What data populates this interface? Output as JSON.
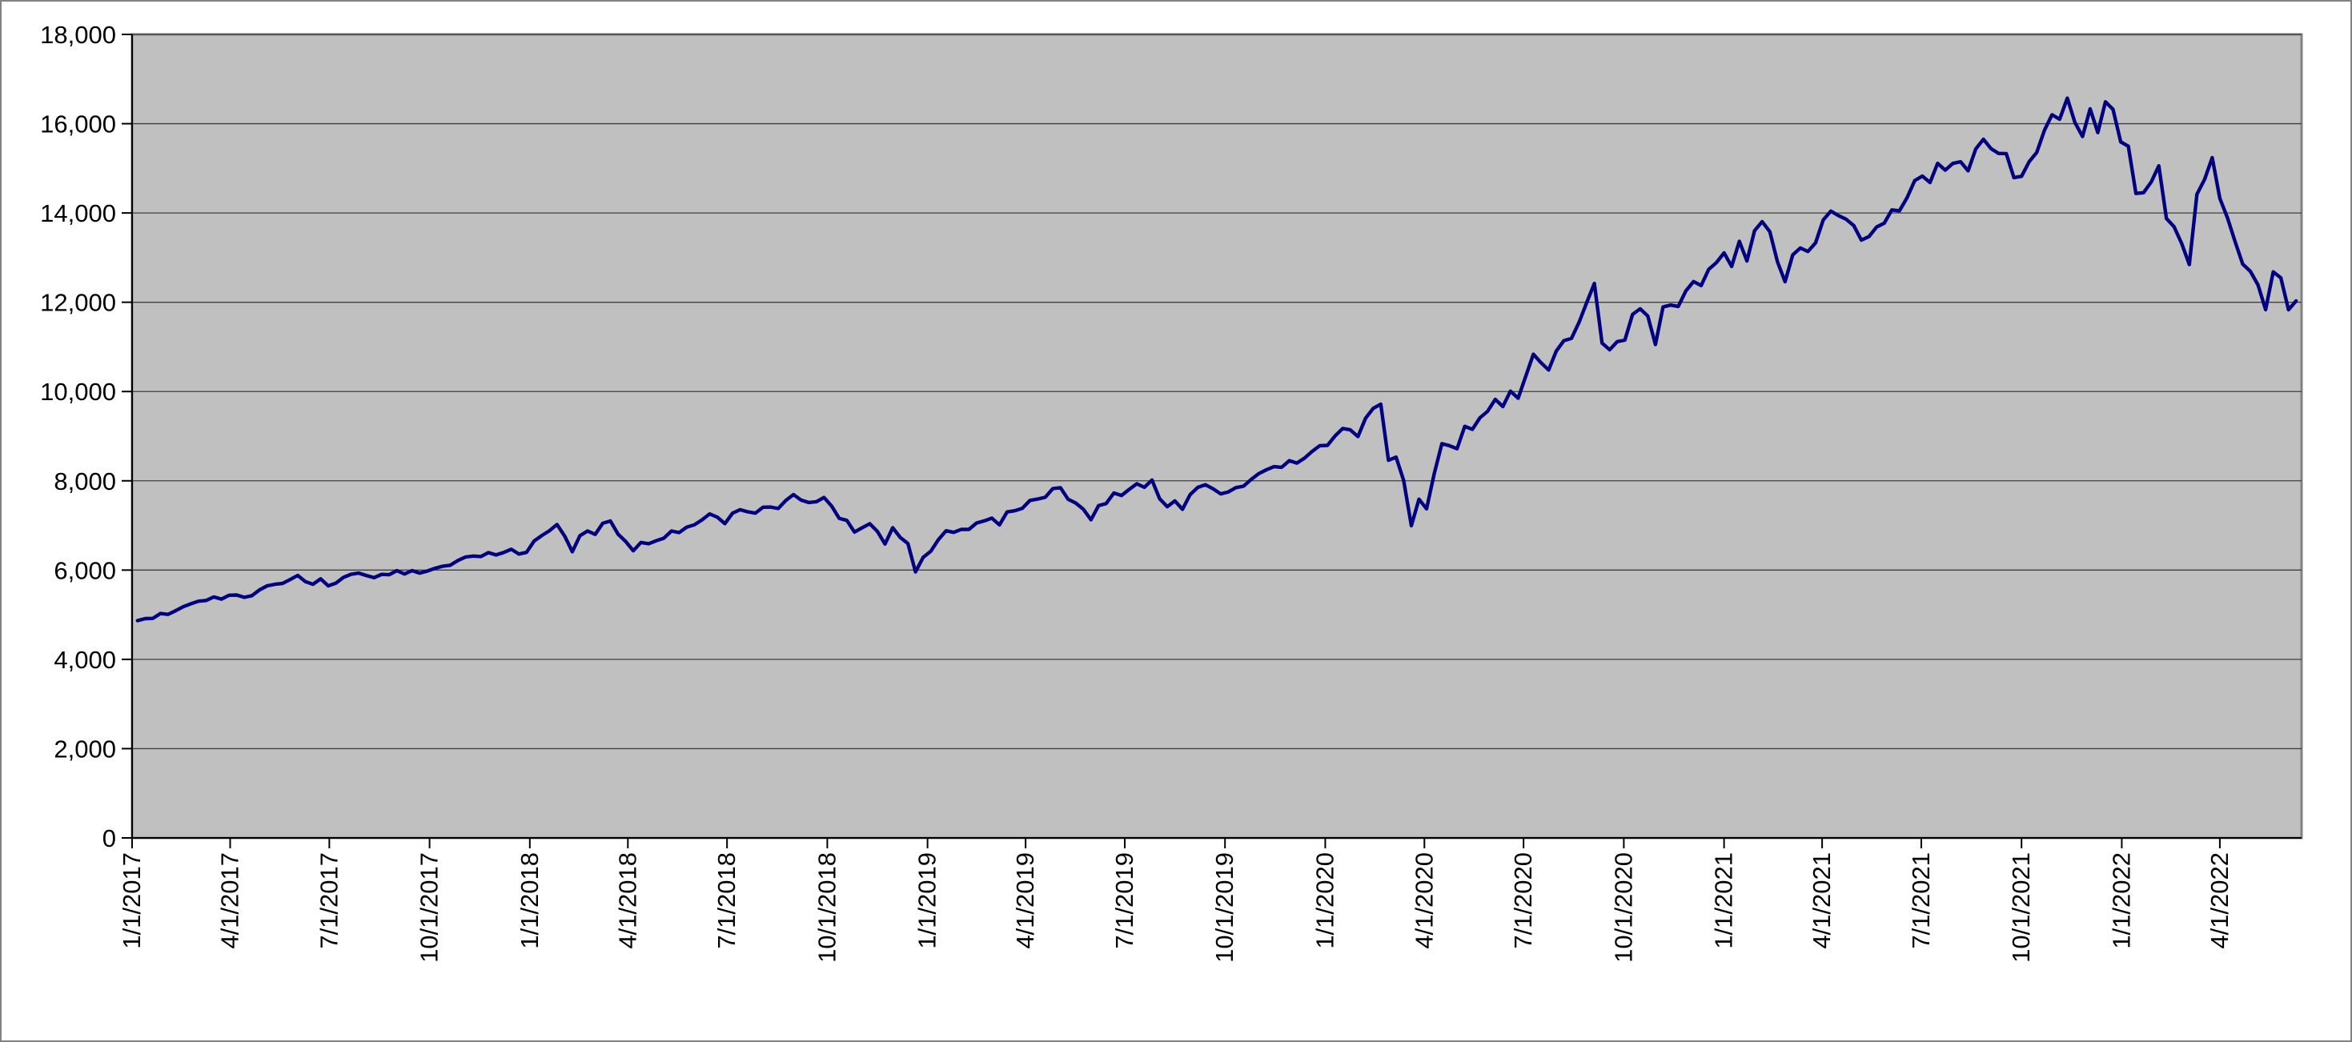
{
  "chart_data": {
    "type": "line",
    "title": "",
    "grid": true,
    "legend": false,
    "colors": {
      "line": "#000080",
      "plot_background": "#c0c0c0",
      "chart_background": "#ffffff",
      "plot_border": "#828282",
      "gridline": "#404040",
      "axis": "#000000",
      "label": "#000000"
    },
    "y_axis": {
      "min": 0,
      "max": 18000,
      "tick_interval": 2000,
      "tick_values": [
        0,
        2000,
        4000,
        6000,
        8000,
        10000,
        12000,
        14000,
        16000,
        18000
      ],
      "tick_labels": [
        "0",
        "2,000",
        "4,000",
        "6,000",
        "8,000",
        "10,000",
        "12,000",
        "14,000",
        "16,000",
        "18,000"
      ]
    },
    "x_axis": {
      "range_start": "2017-01-01",
      "range_end": "2022-06-15",
      "tick_labels": [
        "1/1/2017",
        "4/1/2017",
        "7/1/2017",
        "10/1/2017",
        "1/1/2018",
        "4/1/2018",
        "7/1/2018",
        "10/1/2018",
        "1/1/2019",
        "4/1/2019",
        "7/1/2019",
        "10/1/2019",
        "1/1/2020",
        "4/1/2020",
        "7/1/2020",
        "10/1/2020",
        "1/1/2021",
        "4/1/2021",
        "7/1/2021",
        "10/1/2021",
        "1/1/2022",
        "4/1/2022"
      ]
    },
    "series": [
      {
        "x_start_date": "2017-01-06",
        "x_interval_days": 7,
        "values": [
          4867,
          4912,
          4918,
          5027,
          5007,
          5090,
          5180,
          5246,
          5304,
          5320,
          5398,
          5350,
          5436,
          5442,
          5390,
          5426,
          5558,
          5647,
          5681,
          5700,
          5788,
          5881,
          5742,
          5682,
          5803,
          5647,
          5706,
          5838,
          5906,
          5932,
          5879,
          5831,
          5903,
          5896,
          5988,
          5912,
          5988,
          5932,
          5979,
          6040,
          6087,
          6109,
          6214,
          6292,
          6315,
          6303,
          6392,
          6340,
          6394,
          6466,
          6360,
          6396,
          6653,
          6773,
          6881,
          7022,
          6760,
          6412,
          6770,
          6875,
          6800,
          7050,
          7100,
          6804,
          6640,
          6433,
          6620,
          6590,
          6656,
          6715,
          6875,
          6840,
          6961,
          7013,
          7125,
          7257,
          7188,
          7040,
          7273,
          7352,
          7306,
          7276,
          7408,
          7411,
          7379,
          7563,
          7691,
          7567,
          7513,
          7531,
          7627,
          7435,
          7157,
          7112,
          6852,
          6949,
          7039,
          6867,
          6584,
          6949,
          6730,
          6595,
          5960,
          6285,
          6422,
          6681,
          6880,
          6845,
          6912,
          6912,
          7055,
          7102,
          7165,
          7011,
          7302,
          7329,
          7382,
          7560,
          7590,
          7630,
          7826,
          7846,
          7587,
          7503,
          7364,
          7127,
          7443,
          7491,
          7727,
          7671,
          7806,
          7934,
          7854,
          8017,
          7600,
          7420,
          7550,
          7361,
          7691,
          7852,
          7912,
          7822,
          7708,
          7751,
          7847,
          7880,
          8030,
          8161,
          8247,
          8317,
          8303,
          8451,
          8397,
          8508,
          8660,
          8787,
          8793,
          9006,
          9173,
          9142,
          8991,
          9401,
          9623,
          9718,
          8461,
          8530,
          8006,
          6994,
          7588,
          7373,
          8153,
          8832,
          8787,
          8718,
          9220,
          9152,
          9413,
          9556,
          9825,
          9663,
          10009,
          9849,
          10342,
          10836,
          10645,
          10483,
          10905,
          11139,
          11190,
          11555,
          11996,
          12420,
          11087,
          10937,
          11118,
          11151,
          11726,
          11852,
          11692,
          11052,
          11895,
          11937,
          11906,
          12258,
          12464,
          12375,
          12738,
          12888,
          13106,
          12803,
          13366,
          12925,
          13603,
          13807,
          13580,
          12909,
          12460,
          13060,
          13215,
          13138,
          13330,
          13845,
          14041,
          13941,
          13860,
          13719,
          13393,
          13471,
          13686,
          13771,
          14069,
          14049,
          14345,
          14727,
          14826,
          14681,
          15112,
          14960,
          15110,
          15148,
          14945,
          15432,
          15652,
          15440,
          15334,
          15330,
          14792,
          14822,
          15147,
          15356,
          15850,
          16200,
          16100,
          16573,
          16026,
          15713,
          16332,
          15801,
          16490,
          16320,
          15592,
          15496,
          14438,
          14454,
          14694,
          15056,
          13877,
          13694,
          13313,
          12844,
          14420,
          14754,
          15239,
          14328,
          13893,
          13357,
          12855,
          12694,
          12389,
          11835,
          12681,
          12548,
          11832,
          12030
        ]
      }
    ]
  }
}
